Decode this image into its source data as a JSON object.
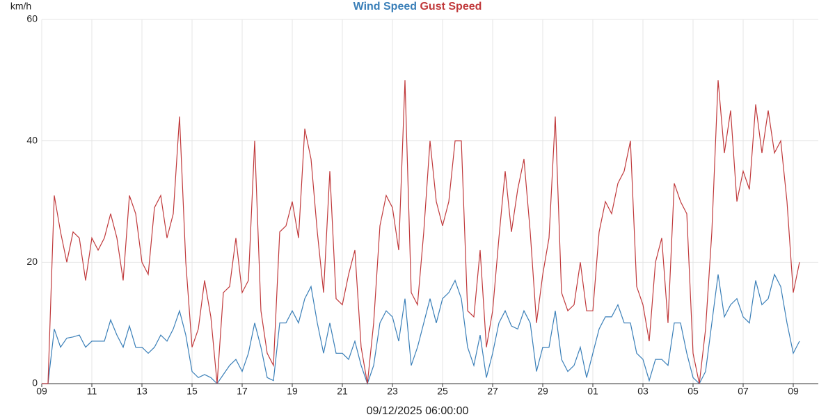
{
  "chart_data": {
    "type": "line",
    "y_label": "km/h",
    "x_label": "09/12/2025 06:00:00",
    "x": [
      0,
      0.25,
      0.5,
      0.75,
      1,
      1.25,
      1.5,
      1.75,
      2,
      2.25,
      2.5,
      2.75,
      3,
      3.25,
      3.5,
      3.75,
      4,
      4.25,
      4.5,
      4.75,
      5,
      5.25,
      5.5,
      5.75,
      6,
      6.25,
      6.5,
      6.75,
      7,
      7.25,
      7.5,
      7.75,
      8,
      8.25,
      8.5,
      8.75,
      9,
      9.25,
      9.5,
      9.75,
      10,
      10.25,
      10.5,
      10.75,
      11,
      11.25,
      11.5,
      11.75,
      12,
      12.25,
      12.5,
      12.75,
      13,
      13.25,
      13.5,
      13.75,
      14,
      14.25,
      14.5,
      14.75,
      15,
      15.25,
      15.5,
      15.75,
      16,
      16.25,
      16.5,
      16.75,
      17,
      17.25,
      17.5,
      17.75,
      18,
      18.25,
      18.5,
      18.75,
      19,
      19.25,
      19.5,
      19.75,
      20,
      20.25,
      20.5,
      20.75,
      21,
      21.25,
      21.5,
      21.75,
      22,
      22.25,
      22.5,
      22.75,
      23,
      23.25,
      23.5,
      23.75,
      24,
      24.25,
      24.5,
      24.75,
      25,
      25.25,
      25.5,
      25.75,
      26,
      26.25,
      26.5,
      26.75,
      27,
      27.25,
      27.5,
      27.75,
      28,
      28.25,
      28.5,
      28.75,
      29,
      29.25,
      29.5,
      29.75,
      30,
      30.25
    ],
    "series": [
      {
        "name": "Wind Speed",
        "color": "#3a7fb8",
        "values": [
          0,
          0,
          9,
          6,
          7.5,
          7.7,
          8,
          6,
          7,
          7,
          7,
          10.5,
          8,
          6,
          9.5,
          6,
          6,
          5,
          6,
          8,
          7,
          9,
          12,
          8,
          2,
          1,
          1.5,
          1,
          0,
          1.5,
          3,
          4,
          2,
          5,
          10,
          6,
          1,
          0.5,
          10,
          10,
          12,
          10,
          14,
          16,
          10,
          5,
          10,
          5,
          5,
          4,
          7,
          3,
          0,
          3,
          10,
          12,
          11,
          7,
          14,
          3,
          6,
          10,
          14,
          10,
          14,
          15,
          17,
          14,
          6,
          3,
          8,
          1,
          5,
          10,
          12,
          9.5,
          9,
          12,
          10,
          2,
          6,
          6,
          12,
          4,
          2,
          3,
          6,
          1,
          5,
          9,
          11,
          11,
          13,
          10,
          10,
          5,
          4,
          0.5,
          4,
          4,
          3,
          10,
          10,
          5,
          1,
          0,
          2,
          10,
          18,
          11,
          13,
          14,
          11,
          10,
          17,
          13,
          14,
          18,
          16,
          10,
          5,
          7
        ]
      },
      {
        "name": "Gust Speed",
        "color": "#c0393b",
        "values": [
          0,
          0,
          31,
          25,
          20,
          25,
          24,
          17,
          24,
          22,
          24,
          28,
          24,
          17,
          31,
          28,
          20,
          18,
          29,
          31,
          24,
          28,
          44,
          20,
          6,
          9,
          17,
          11,
          0,
          15,
          16,
          24,
          15,
          17,
          40,
          12,
          5,
          3,
          25,
          26,
          30,
          24,
          42,
          37,
          25,
          15,
          35,
          14,
          13,
          18,
          22,
          6,
          0,
          10,
          26,
          31,
          29,
          22,
          50,
          15,
          13,
          25,
          40,
          30,
          26,
          30,
          40,
          40,
          12,
          11,
          22,
          6,
          12,
          24,
          35,
          25,
          32,
          37,
          25,
          10,
          18,
          24,
          44,
          15,
          12,
          13,
          20,
          12,
          12,
          25,
          30,
          28,
          33,
          35,
          40,
          16,
          13,
          7,
          20,
          24,
          10,
          33,
          30,
          28,
          5,
          0,
          9,
          25,
          50,
          38,
          45,
          30,
          35,
          32,
          46,
          38,
          45,
          38,
          40,
          30,
          15,
          20
        ]
      }
    ],
    "xlim": [
      0,
      31
    ],
    "xticks": [
      {
        "value": 0,
        "label": "09"
      },
      {
        "value": 2,
        "label": "11"
      },
      {
        "value": 4,
        "label": "13"
      },
      {
        "value": 6,
        "label": "15"
      },
      {
        "value": 8,
        "label": "17"
      },
      {
        "value": 10,
        "label": "19"
      },
      {
        "value": 12,
        "label": "21"
      },
      {
        "value": 14,
        "label": "23"
      },
      {
        "value": 16,
        "label": "25"
      },
      {
        "value": 18,
        "label": "27"
      },
      {
        "value": 20,
        "label": "29"
      },
      {
        "value": 22,
        "label": "01"
      },
      {
        "value": 24,
        "label": "03"
      },
      {
        "value": 26,
        "label": "05"
      },
      {
        "value": 28,
        "label": "07"
      },
      {
        "value": 30,
        "label": "09"
      }
    ],
    "ylim": [
      0,
      60
    ],
    "yticks": [
      0,
      20,
      40,
      60
    ],
    "grid": true
  }
}
